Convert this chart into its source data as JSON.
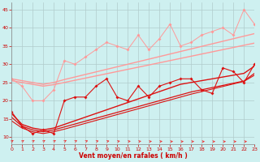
{
  "background_color": "#cef0f0",
  "grid_color": "#b0cccc",
  "xlabel": "Vent moyen/en rafales ( km/h )",
  "xlim": [
    0,
    23
  ],
  "ylim": [
    8,
    47
  ],
  "yticks": [
    10,
    15,
    20,
    25,
    30,
    35,
    40,
    45
  ],
  "xticks": [
    0,
    1,
    2,
    3,
    4,
    5,
    6,
    7,
    8,
    9,
    10,
    11,
    12,
    13,
    14,
    15,
    16,
    17,
    18,
    19,
    20,
    21,
    22,
    23
  ],
  "line_color_light": "#ff9999",
  "line_color_dark": "#dd1111",
  "x": [
    0,
    1,
    2,
    3,
    4,
    5,
    6,
    7,
    8,
    9,
    10,
    11,
    12,
    13,
    14,
    15,
    16,
    17,
    18,
    19,
    20,
    21,
    22,
    23
  ],
  "series_light_jagged": [
    26,
    24,
    20,
    20,
    23,
    31,
    30,
    32,
    34,
    36,
    35,
    34,
    38,
    34,
    37,
    41,
    35,
    36,
    38,
    39,
    40,
    38,
    45,
    41
  ],
  "series_light_trend1": [
    26.0,
    25.5,
    25.0,
    24.5,
    25.0,
    25.8,
    26.5,
    27.2,
    27.9,
    28.6,
    29.3,
    30.0,
    30.7,
    31.4,
    32.1,
    32.8,
    33.5,
    34.2,
    34.9,
    35.6,
    36.3,
    37.0,
    37.7,
    38.4
  ],
  "series_light_trend2": [
    25.5,
    25.0,
    24.5,
    24.0,
    24.4,
    25.0,
    25.6,
    26.2,
    26.8,
    27.4,
    28.0,
    28.6,
    29.2,
    29.8,
    30.4,
    31.0,
    31.6,
    32.2,
    32.8,
    33.4,
    34.0,
    34.6,
    35.2,
    35.8
  ],
  "series_dark_jagged": [
    17,
    13,
    11,
    12,
    11,
    20,
    21,
    21,
    24,
    26,
    21,
    20,
    24,
    21,
    24,
    25,
    26,
    26,
    23,
    22,
    29,
    28,
    25,
    30
  ],
  "series_dark_trend1": [
    16.5,
    13.5,
    12.5,
    12.0,
    12.5,
    13.5,
    14.5,
    15.5,
    16.5,
    17.5,
    18.5,
    19.5,
    20.5,
    21.5,
    22.5,
    23.5,
    24.5,
    25.0,
    25.5,
    26.0,
    26.5,
    27.0,
    27.5,
    29.5
  ],
  "series_dark_trend2": [
    15.5,
    13.0,
    12.0,
    11.5,
    12.0,
    12.8,
    13.6,
    14.4,
    15.2,
    16.0,
    16.8,
    17.6,
    18.4,
    19.2,
    20.0,
    20.8,
    21.6,
    22.4,
    23.0,
    23.6,
    24.2,
    24.8,
    25.4,
    27.5
  ],
  "series_dark_trend3": [
    14.5,
    12.5,
    11.5,
    11.0,
    11.5,
    12.2,
    13.0,
    13.8,
    14.6,
    15.4,
    16.2,
    17.0,
    17.8,
    18.6,
    19.4,
    20.2,
    21.0,
    21.8,
    22.5,
    23.2,
    23.9,
    24.6,
    25.3,
    27.0
  ],
  "arrow_angles_deg": [
    50,
    50,
    50,
    50,
    50,
    45,
    40,
    35,
    30,
    25,
    20,
    15,
    15,
    10,
    10,
    5,
    5,
    5,
    3,
    3,
    3,
    3,
    3,
    3
  ]
}
